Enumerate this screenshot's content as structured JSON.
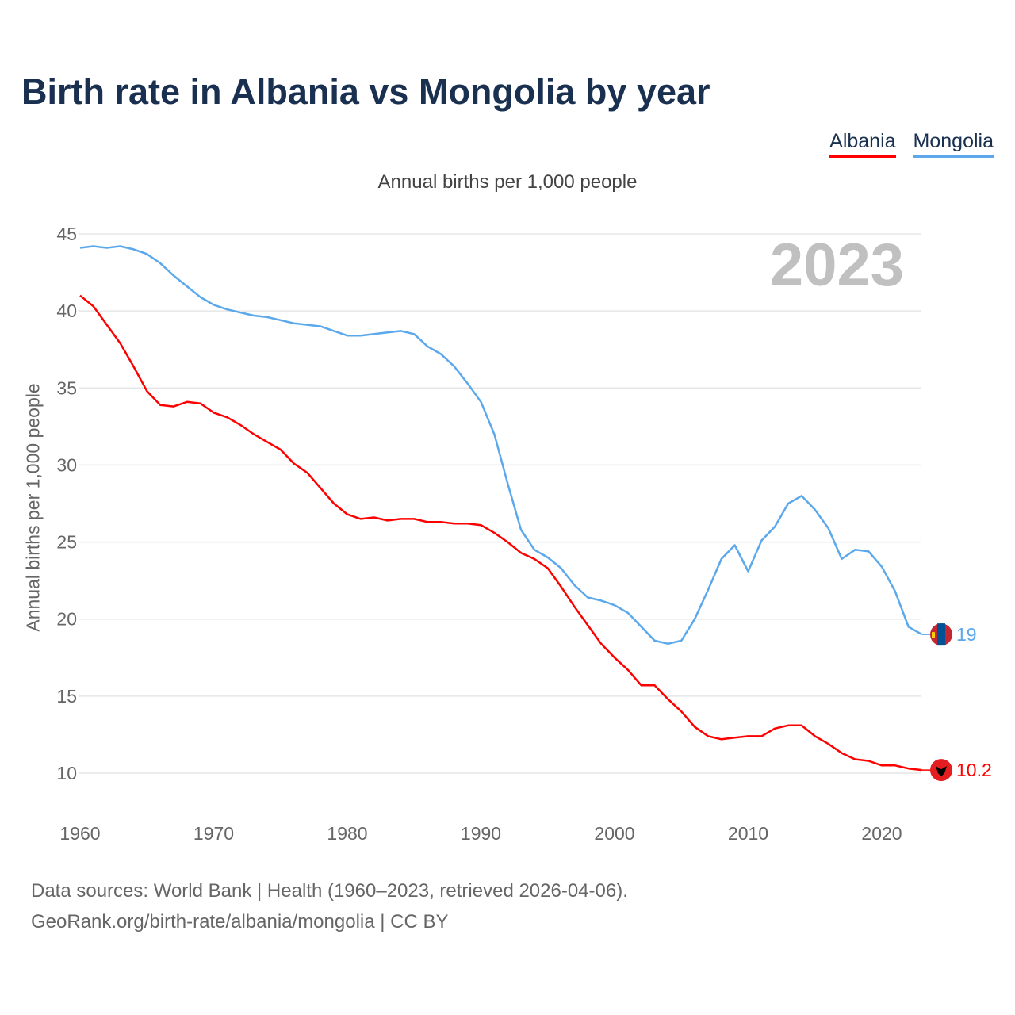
{
  "title": "Birth rate in Albania vs Mongolia by year",
  "legend": [
    {
      "label": "Albania",
      "color": "#ff0000"
    },
    {
      "label": "Mongolia",
      "color": "#5ba8ec"
    }
  ],
  "subtitle": "Annual births per 1,000 people",
  "year_watermark": "2023",
  "footer": {
    "line1": "Data sources: World Bank | Health (1960–2023, retrieved 2026-04-06).",
    "line2": "GeoRank.org/birth-rate/albania/mongolia | CC BY"
  },
  "chart_data": {
    "type": "line",
    "title": "Birth rate in Albania vs Mongolia by year",
    "xlabel": "",
    "ylabel": "Annual births per 1,000 people",
    "xlim": [
      1960,
      2023
    ],
    "ylim": [
      7.5,
      45
    ],
    "xticks": [
      1960,
      1970,
      1980,
      1990,
      2000,
      2010,
      2020
    ],
    "yticks": [
      10,
      15,
      20,
      25,
      30,
      35,
      40,
      45
    ],
    "grid": true,
    "legend_position": "top-right",
    "x_start": 1960,
    "series": [
      {
        "name": "Albania",
        "color": "#ff0000",
        "end_label": "10.2",
        "values": [
          41.0,
          40.3,
          39.1,
          37.9,
          36.4,
          34.8,
          33.9,
          33.8,
          34.1,
          34.0,
          33.4,
          33.1,
          32.6,
          32.0,
          31.5,
          31.0,
          30.1,
          29.5,
          28.5,
          27.5,
          26.8,
          26.5,
          26.6,
          26.4,
          26.5,
          26.5,
          26.3,
          26.3,
          26.2,
          26.2,
          26.1,
          25.6,
          25.0,
          24.3,
          23.9,
          23.3,
          22.1,
          20.8,
          19.6,
          18.4,
          17.5,
          16.7,
          15.7,
          15.7,
          14.8,
          14.0,
          13.0,
          12.4,
          12.2,
          12.3,
          12.4,
          12.4,
          12.9,
          13.1,
          13.1,
          12.4,
          11.9,
          11.3,
          10.9,
          10.8,
          10.5,
          10.5,
          10.3,
          10.2
        ]
      },
      {
        "name": "Mongolia",
        "color": "#5ba8ec",
        "end_label": "19",
        "values": [
          44.1,
          44.2,
          44.1,
          44.2,
          44.0,
          43.7,
          43.1,
          42.3,
          41.6,
          40.9,
          40.4,
          40.1,
          39.9,
          39.7,
          39.6,
          39.4,
          39.2,
          39.1,
          39.0,
          38.7,
          38.4,
          38.4,
          38.5,
          38.6,
          38.7,
          38.5,
          37.7,
          37.2,
          36.4,
          35.3,
          34.1,
          32.0,
          28.8,
          25.8,
          24.5,
          24.0,
          23.3,
          22.2,
          21.4,
          21.2,
          20.9,
          20.4,
          19.5,
          18.6,
          18.4,
          18.6,
          20.0,
          21.9,
          23.9,
          24.8,
          23.1,
          25.1,
          26.0,
          27.5,
          28.0,
          27.1,
          25.9,
          23.9,
          24.5,
          24.4,
          23.4,
          21.8,
          19.5,
          19.0
        ]
      }
    ]
  }
}
